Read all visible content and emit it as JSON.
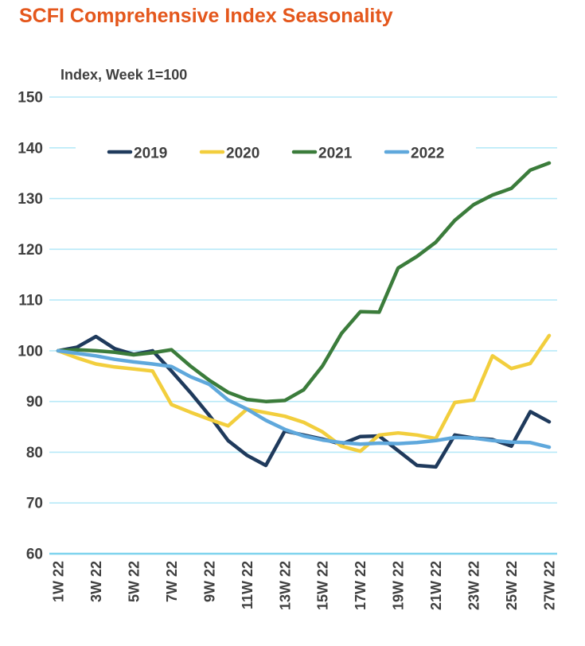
{
  "header": {
    "title": "SCFI Comprehensive Index Seasonality"
  },
  "chart": {
    "subtitle": "Index, Week 1=100"
  },
  "colors": {
    "title": "#E4571C",
    "axis_text": "#3F3F3F",
    "gridline": "#B7E9F8",
    "axis_line": "#7ED3EE",
    "series_2019": "#1F3A5C",
    "series_2020": "#F2CE3D",
    "series_2021": "#3B7C3B",
    "series_2022": "#5FA8DC"
  },
  "chart_data": {
    "type": "line",
    "title": "SCFI Comprehensive Index Seasonality",
    "subtitle": "Index, Week 1=100",
    "xlabel": "",
    "ylabel": "Index, Week 1=100",
    "ylim": [
      60,
      150
    ],
    "y_ticks": [
      150,
      140,
      130,
      120,
      110,
      100,
      90,
      80,
      70,
      60
    ],
    "grid": true,
    "legend_position": "top-inside",
    "categories": [
      1,
      2,
      3,
      4,
      5,
      6,
      7,
      8,
      9,
      10,
      11,
      12,
      13,
      14,
      15,
      16,
      17,
      18,
      19,
      20,
      21,
      22,
      23,
      24,
      25,
      26,
      27
    ],
    "x_tick_labels": [
      "1W 22",
      "3W 22",
      "5W 22",
      "7W 22",
      "9W 22",
      "11W 22",
      "13W 22",
      "15W 22",
      "17W 22",
      "19W 22",
      "21W 22",
      "23W 22",
      "25W 22",
      "27W 22"
    ],
    "x_tick_weeks": [
      1,
      3,
      5,
      7,
      9,
      11,
      13,
      15,
      17,
      19,
      21,
      23,
      25,
      27
    ],
    "series": [
      {
        "name": "2019",
        "color": "#1F3A5C",
        "values": [
          100,
          100.7,
          102.8,
          100.4,
          99.3,
          100,
          96,
          91.8,
          87.3,
          82.3,
          79.4,
          77.4,
          84.2,
          83.4,
          82.6,
          81.6,
          83.1,
          83.2,
          80.3,
          77.4,
          77.1,
          83.4,
          82.8,
          82.5,
          81.2,
          88,
          86
        ]
      },
      {
        "name": "2020",
        "color": "#F2CE3D",
        "values": [
          100,
          98.6,
          97.4,
          96.8,
          96.4,
          96,
          89.4,
          87.9,
          86.5,
          85.2,
          88.5,
          87.8,
          87.1,
          85.9,
          84,
          81.2,
          80.2,
          83.4,
          83.8,
          83.4,
          82.7,
          89.8,
          90.3,
          99,
          96.5,
          97.5,
          103
        ]
      },
      {
        "name": "2021",
        "color": "#3B7C3B",
        "values": [
          100,
          100.2,
          100,
          99.7,
          99.2,
          99.6,
          100.2,
          97,
          94.2,
          91.8,
          90.4,
          90,
          90.2,
          92.3,
          97,
          103.4,
          107.7,
          107.6,
          116.3,
          118.6,
          121.4,
          125.7,
          128.8,
          130.7,
          132,
          135.6,
          137
        ]
      },
      {
        "name": "2022",
        "color": "#5FA8DC",
        "values": [
          100,
          99.5,
          99,
          98.3,
          97.8,
          97.4,
          96.9,
          94.9,
          93.4,
          90.3,
          88.5,
          86.3,
          84.5,
          83.2,
          82.4,
          81.9,
          81.6,
          81.8,
          81.7,
          81.9,
          82.3,
          82.9,
          82.8,
          82.3,
          82,
          81.9,
          81
        ]
      }
    ]
  }
}
